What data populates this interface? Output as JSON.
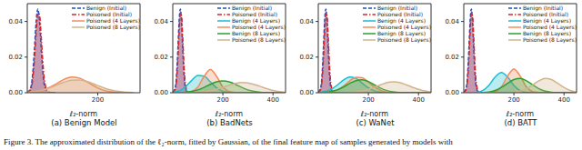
{
  "caption": "Figure 3. The approximated distribution of the ℓ₂-norm, fitted by Gaussian, of the final feature map of samples generated by models with",
  "chart_data": [
    {
      "type": "area",
      "title": "(a) Benign Model",
      "xlabel": "ℓ₂-norm",
      "legend": "upper right",
      "xlim": [
        0,
        320
      ],
      "xticks": [
        200
      ],
      "ylim": [
        0,
        0.05
      ],
      "yticks": [
        {
          "value": 0,
          "label": "0.00"
        },
        {
          "value": 0.02,
          "label": "0.02"
        },
        {
          "value": 0.04,
          "label": "0.04"
        }
      ],
      "x": [
        0,
        25,
        50,
        75,
        100,
        125,
        150,
        175,
        200,
        225,
        250,
        275,
        300
      ],
      "series": [
        {
          "name": "Benign (Initial)",
          "color": "#1f4fbf",
          "line_style": "dashed",
          "x": [
            0,
            10,
            15,
            20,
            25,
            30,
            35,
            40,
            45,
            50,
            60,
            80
          ],
          "values": [
            0.0002,
            0.003,
            0.0099,
            0.0235,
            0.0395,
            0.047,
            0.0395,
            0.0235,
            0.0099,
            0.003,
            0.0002,
            0
          ]
        },
        {
          "name": "Poisoned (Initial)",
          "color": "#d62728",
          "line_style": "dashdot",
          "x": [
            0,
            10,
            15,
            20,
            25,
            30,
            35,
            40,
            45,
            50,
            60,
            80
          ],
          "values": [
            0.0001,
            0.0019,
            0.0068,
            0.0177,
            0.0332,
            0.0447,
            0.0433,
            0.0301,
            0.015,
            0.0054,
            0.0003,
            0
          ]
        },
        {
          "name": "Poisoned (4 Layers)",
          "color": "#f28c5b",
          "line_style": "solid",
          "values": [
            0.0001,
            0.0006,
            0.0018,
            0.0042,
            0.0071,
            0.0088,
            0.0081,
            0.0054,
            0.0027,
            0.001,
            0.0003,
            0,
            0
          ]
        },
        {
          "name": "Poisoned (8 Layers)",
          "color": "#d2b48c",
          "line_style": "solid",
          "values": [
            0.0003,
            0.0008,
            0.0019,
            0.0036,
            0.0056,
            0.007,
            0.0072,
            0.006,
            0.004,
            0.0022,
            0.001,
            0.0004,
            0.0001
          ]
        }
      ]
    },
    {
      "type": "area",
      "title": "(b) BadNets",
      "xlabel": "ℓ₂-norm",
      "legend": "upper right",
      "xlim": [
        0,
        450
      ],
      "xticks": [
        200,
        400
      ],
      "ylim": [
        0,
        0.05
      ],
      "yticks": [
        {
          "value": 0,
          "label": "0.00"
        },
        {
          "value": 0.02,
          "label": "0.02"
        },
        {
          "value": 0.04,
          "label": "0.04"
        }
      ],
      "x": [
        0,
        25,
        50,
        75,
        100,
        125,
        150,
        175,
        200,
        225,
        250,
        275,
        300,
        325,
        350,
        375,
        400,
        425,
        450
      ],
      "series": [
        {
          "name": "Benign (Initial)",
          "color": "#1f4fbf",
          "line_style": "dashed",
          "x": [
            0,
            10,
            15,
            20,
            25,
            30,
            35,
            40,
            45,
            50,
            60,
            80
          ],
          "values": [
            0.0002,
            0.003,
            0.0099,
            0.0235,
            0.0395,
            0.047,
            0.0395,
            0.0235,
            0.0099,
            0.003,
            0.0002,
            0
          ]
        },
        {
          "name": "Poisoned (Initial)",
          "color": "#d62728",
          "line_style": "dashdot",
          "x": [
            0,
            10,
            15,
            20,
            25,
            30,
            35,
            40,
            45,
            50,
            60,
            80
          ],
          "values": [
            0.0001,
            0.0019,
            0.0068,
            0.0177,
            0.0332,
            0.0447,
            0.0433,
            0.0301,
            0.015,
            0.0054,
            0.0003,
            0
          ]
        },
        {
          "name": "Benign (4 Layers)",
          "color": "#17becf",
          "line_style": "solid",
          "values": [
            0.0002,
            0.001,
            0.0032,
            0.0068,
            0.0097,
            0.0093,
            0.0061,
            0.0027,
            0.0008,
            0.0002,
            0,
            0,
            0,
            0,
            0,
            0,
            0,
            0,
            0
          ]
        },
        {
          "name": "Poisoned (4 Layers)",
          "color": "#f28c5b",
          "line_style": "solid",
          "values": [
            0,
            0,
            0.0001,
            0.0006,
            0.0032,
            0.0092,
            0.013,
            0.0092,
            0.0032,
            0.0006,
            0.0001,
            0,
            0,
            0,
            0,
            0,
            0,
            0,
            0
          ]
        },
        {
          "name": "Benign (8 Layers)",
          "color": "#2ca02c",
          "line_style": "solid",
          "values": [
            0,
            0.0001,
            0.0003,
            0.0008,
            0.0016,
            0.003,
            0.0047,
            0.0061,
            0.0066,
            0.0061,
            0.0047,
            0.003,
            0.0016,
            0.0008,
            0.0003,
            0.0001,
            0,
            0,
            0
          ]
        },
        {
          "name": "Poisoned (8 Layers)",
          "color": "#d2b48c",
          "line_style": "solid",
          "values": [
            0,
            0,
            0,
            0.0001,
            0.0002,
            0.0005,
            0.001,
            0.0019,
            0.003,
            0.0042,
            0.0052,
            0.0057,
            0.0055,
            0.0046,
            0.0035,
            0.0023,
            0.0013,
            0.0007,
            0.0003
          ]
        }
      ]
    },
    {
      "type": "area",
      "title": "(c) WaNet",
      "xlabel": "ℓ₂-norm",
      "legend": "upper right",
      "xlim": [
        0,
        450
      ],
      "xticks": [
        200,
        400
      ],
      "ylim": [
        0,
        0.05
      ],
      "yticks": [
        {
          "value": 0,
          "label": "0.00"
        },
        {
          "value": 0.02,
          "label": "0.02"
        },
        {
          "value": 0.04,
          "label": "0.04"
        }
      ],
      "x": [
        0,
        25,
        50,
        75,
        100,
        125,
        150,
        175,
        200,
        225,
        250,
        275,
        300,
        325,
        350,
        375,
        400,
        425,
        450
      ],
      "series": [
        {
          "name": "Benign (Initial)",
          "color": "#1f4fbf",
          "line_style": "dashed",
          "x": [
            0,
            10,
            15,
            20,
            25,
            30,
            35,
            40,
            45,
            50,
            60,
            80
          ],
          "values": [
            0.0002,
            0.003,
            0.0099,
            0.0235,
            0.0395,
            0.047,
            0.0395,
            0.0235,
            0.0099,
            0.003,
            0.0002,
            0
          ]
        },
        {
          "name": "Poisoned (Initial)",
          "color": "#d62728",
          "line_style": "dashdot",
          "x": [
            0,
            10,
            15,
            20,
            25,
            30,
            35,
            40,
            45,
            50,
            60,
            80
          ],
          "values": [
            0.0001,
            0.0019,
            0.0068,
            0.0177,
            0.0332,
            0.0447,
            0.0433,
            0.0301,
            0.015,
            0.0054,
            0.0003,
            0
          ]
        },
        {
          "name": "Benign (4 Layers)",
          "color": "#17becf",
          "line_style": "solid",
          "values": [
            0.0001,
            0.0006,
            0.0018,
            0.0042,
            0.0071,
            0.0088,
            0.0081,
            0.0054,
            0.0027,
            0.001,
            0.0003,
            0,
            0,
            0,
            0,
            0,
            0,
            0,
            0
          ]
        },
        {
          "name": "Poisoned (4 Layers)",
          "color": "#f28c5b",
          "line_style": "solid",
          "values": [
            0,
            0.0001,
            0.0005,
            0.0015,
            0.0037,
            0.0066,
            0.0087,
            0.0084,
            0.006,
            0.0032,
            0.0012,
            0.0003,
            0.0001,
            0,
            0,
            0,
            0,
            0,
            0
          ]
        },
        {
          "name": "Benign (8 Layers)",
          "color": "#2ca02c",
          "line_style": "solid",
          "values": [
            0.0001,
            0.0002,
            0.0007,
            0.0016,
            0.0032,
            0.0052,
            0.0068,
            0.0073,
            0.0063,
            0.0044,
            0.0025,
            0.0012,
            0.0005,
            0.0001,
            0,
            0,
            0,
            0,
            0
          ]
        },
        {
          "name": "Poisoned (8 Layers)",
          "color": "#d2b48c",
          "line_style": "solid",
          "values": [
            0,
            0,
            0,
            0,
            0.0001,
            0.0002,
            0.0004,
            0.001,
            0.0019,
            0.0031,
            0.0045,
            0.0057,
            0.0061,
            0.0057,
            0.0045,
            0.0031,
            0.0019,
            0.001,
            0.0004
          ]
        }
      ]
    },
    {
      "type": "area",
      "title": "(d) BATT",
      "xlabel": "ℓ₂-norm",
      "legend": "upper right",
      "xlim": [
        0,
        450
      ],
      "xticks": [
        200,
        400
      ],
      "ylim": [
        0,
        0.05
      ],
      "yticks": [
        {
          "value": 0,
          "label": "0.00"
        },
        {
          "value": 0.02,
          "label": "0.02"
        },
        {
          "value": 0.04,
          "label": "0.04"
        }
      ],
      "x": [
        0,
        25,
        50,
        75,
        100,
        125,
        150,
        175,
        200,
        225,
        250,
        275,
        300,
        325,
        350,
        375,
        400,
        425,
        450
      ],
      "series": [
        {
          "name": "Benign (Initial)",
          "color": "#1f4fbf",
          "line_style": "dashed",
          "x": [
            0,
            10,
            15,
            20,
            25,
            30,
            35,
            40,
            45,
            50,
            60,
            80
          ],
          "values": [
            0.0002,
            0.003,
            0.0099,
            0.0235,
            0.0395,
            0.047,
            0.0395,
            0.0235,
            0.0099,
            0.003,
            0.0002,
            0
          ]
        },
        {
          "name": "Poisoned (Initial)",
          "color": "#d62728",
          "line_style": "dashdot",
          "x": [
            0,
            10,
            15,
            20,
            25,
            30,
            35,
            40,
            45,
            50,
            60,
            80
          ],
          "values": [
            0.0001,
            0.0019,
            0.0068,
            0.0177,
            0.0332,
            0.0447,
            0.0433,
            0.0301,
            0.015,
            0.0054,
            0.0003,
            0
          ]
        },
        {
          "name": "Benign (4 Layers)",
          "color": "#17becf",
          "line_style": "solid",
          "values": [
            0,
            0,
            0.0002,
            0.0012,
            0.0041,
            0.0088,
            0.0114,
            0.0088,
            0.0041,
            0.0012,
            0.0002,
            0,
            0,
            0,
            0,
            0,
            0,
            0,
            0
          ]
        },
        {
          "name": "Poisoned (4 Layers)",
          "color": "#f28c5b",
          "line_style": "solid",
          "values": [
            0,
            0,
            0,
            0,
            0.0001,
            0.0006,
            0.0033,
            0.0094,
            0.0133,
            0.0094,
            0.0033,
            0.0006,
            0.0001,
            0,
            0,
            0,
            0,
            0,
            0
          ]
        },
        {
          "name": "Benign (8 Layers)",
          "color": "#2ca02c",
          "line_style": "solid",
          "values": [
            0,
            0,
            0,
            0.0001,
            0.0004,
            0.0013,
            0.003,
            0.0053,
            0.0074,
            0.008,
            0.0067,
            0.0044,
            0.0022,
            0.0009,
            0.0003,
            0.0001,
            0,
            0,
            0
          ]
        },
        {
          "name": "Poisoned (8 Layers)",
          "color": "#d2b48c",
          "line_style": "solid",
          "values": [
            0,
            0,
            0,
            0,
            0,
            0,
            0,
            0.0001,
            0.0003,
            0.0009,
            0.0022,
            0.0044,
            0.0067,
            0.008,
            0.0074,
            0.0053,
            0.003,
            0.0013,
            0.0004
          ]
        }
      ]
    }
  ]
}
